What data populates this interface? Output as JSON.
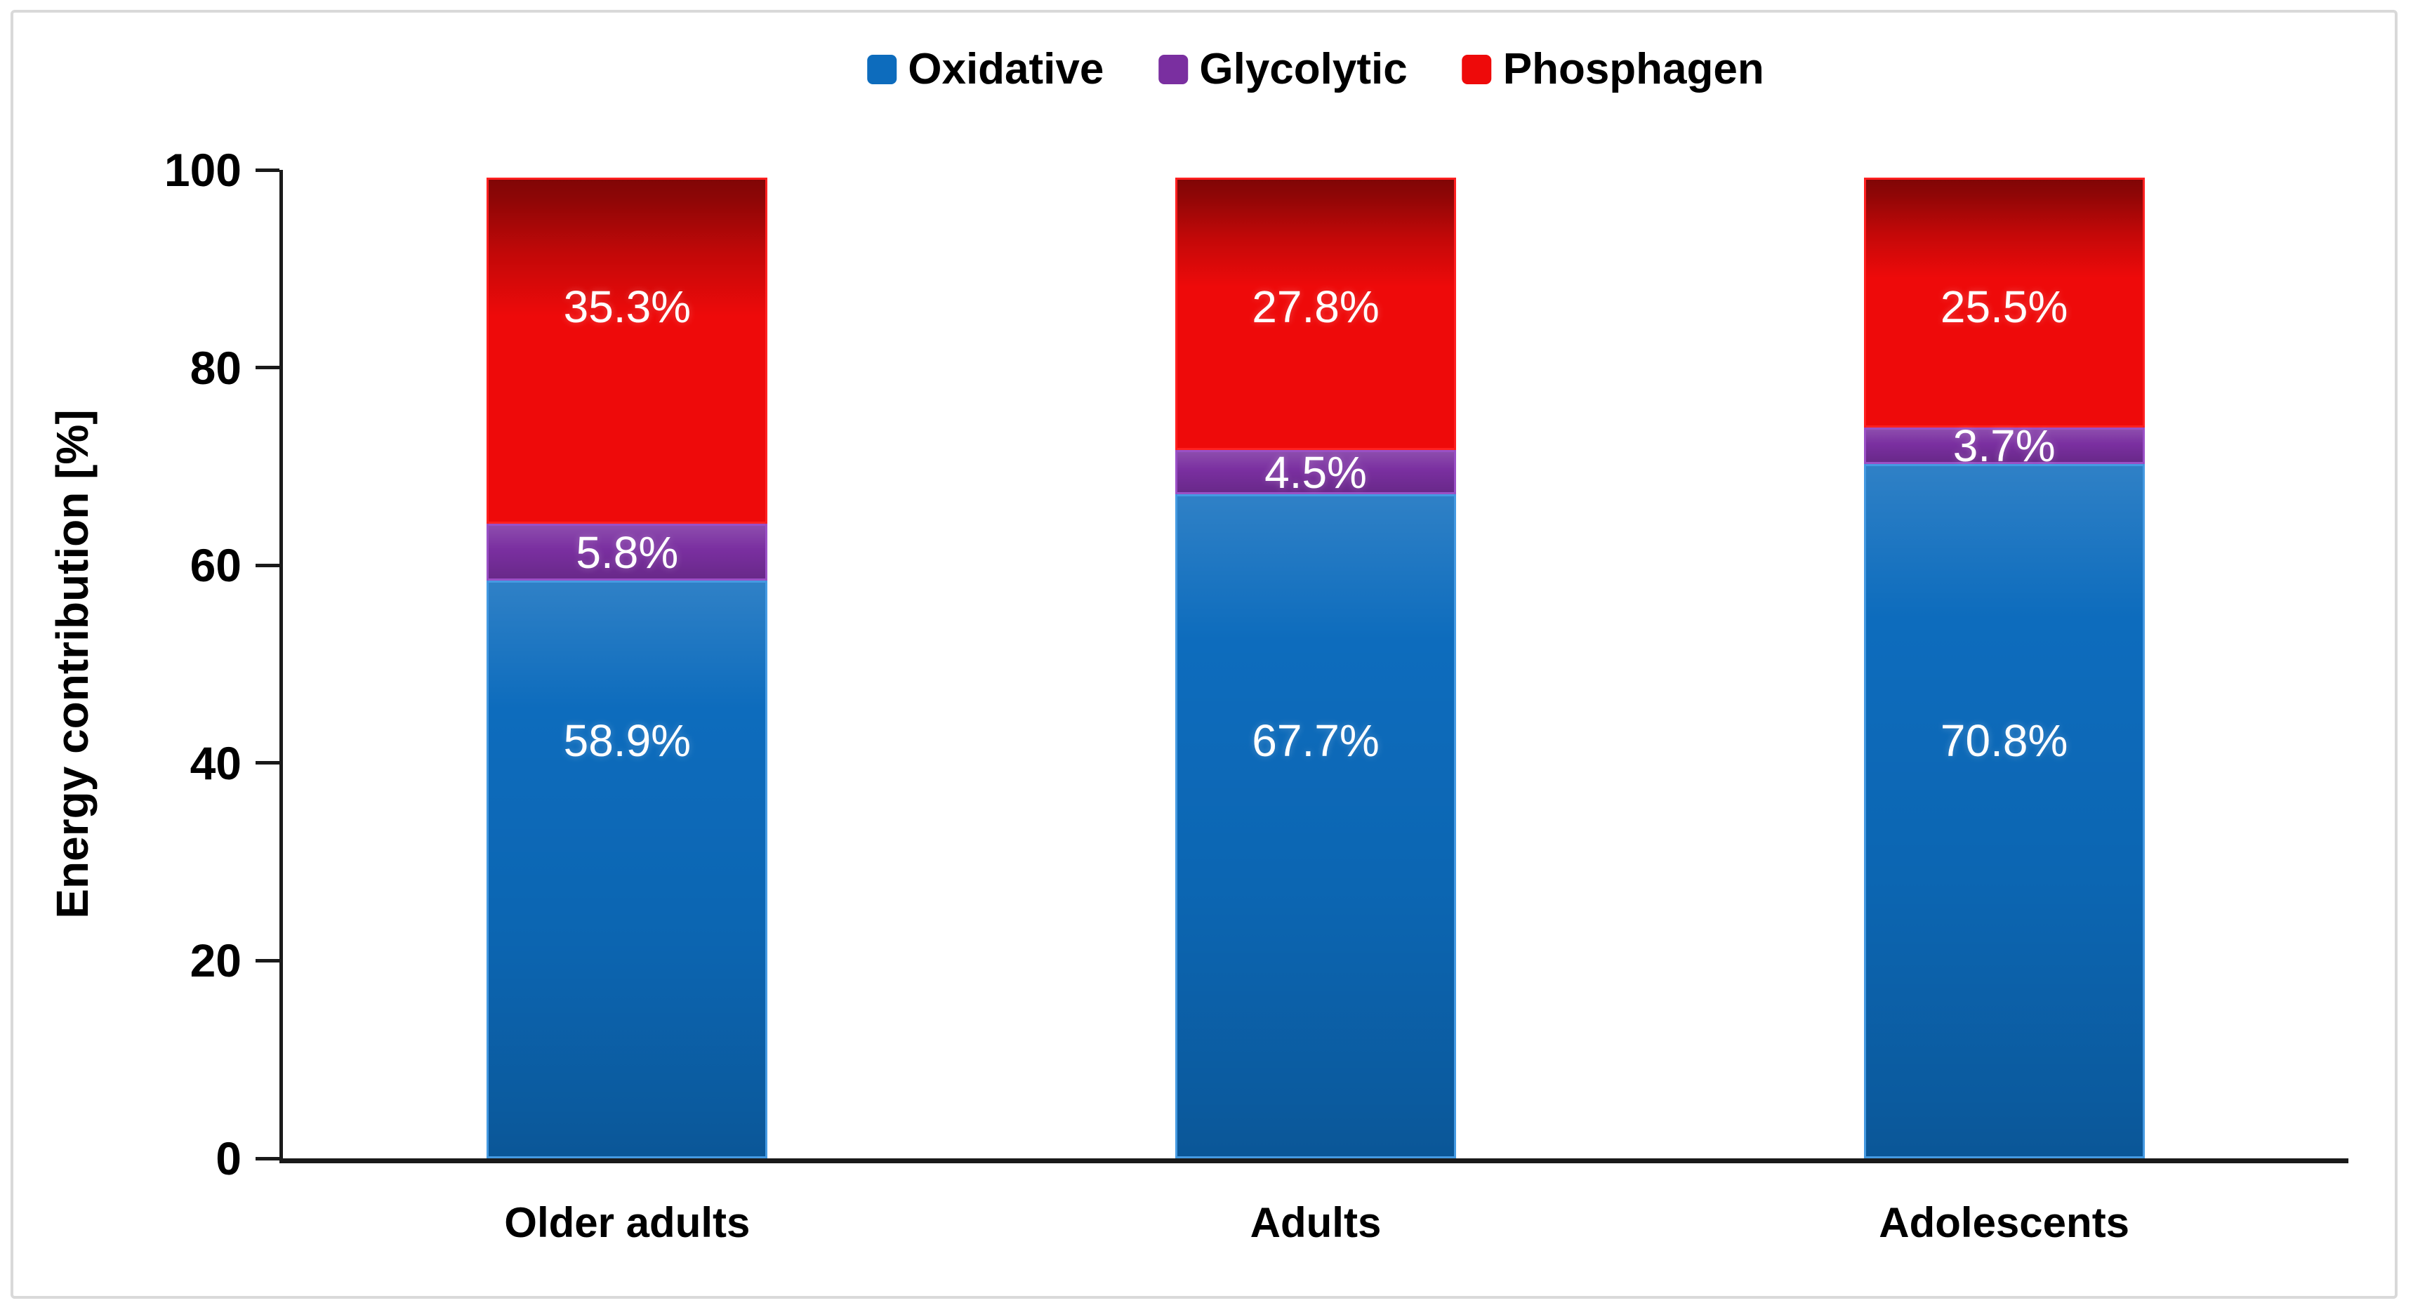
{
  "figure": {
    "background": "#ffffff",
    "border_color": "#d9d9d9",
    "axis_color": "#1a1a1a"
  },
  "chart_data": {
    "type": "bar",
    "stacked": true,
    "title": "",
    "xlabel": "",
    "ylabel": "Energy contribution [%]",
    "ylim": [
      0,
      100
    ],
    "yticks": [
      "0",
      "20",
      "40",
      "60",
      "80",
      "100"
    ],
    "grid": false,
    "legend_position": "top-center",
    "data_label_color": "#ffffff",
    "categories": [
      "Older adults",
      "Adults",
      "Adolescents"
    ],
    "series": [
      {
        "name": "Oxidative",
        "color": "#0d6cbd",
        "values": [
          58.9,
          67.7,
          70.8
        ],
        "labels": [
          "58.9%",
          "67.7%",
          "70.8%"
        ]
      },
      {
        "name": "Glycolytic",
        "color": "#7a2fa0",
        "values": [
          5.8,
          4.5,
          3.7
        ],
        "labels": [
          "5.8%",
          "4.5%",
          "3.7%"
        ]
      },
      {
        "name": "Phosphagen",
        "color": "#ee0a0a",
        "values": [
          35.3,
          27.8,
          25.5
        ],
        "labels": [
          "35.3%",
          "27.8%",
          "25.5%"
        ]
      }
    ]
  }
}
